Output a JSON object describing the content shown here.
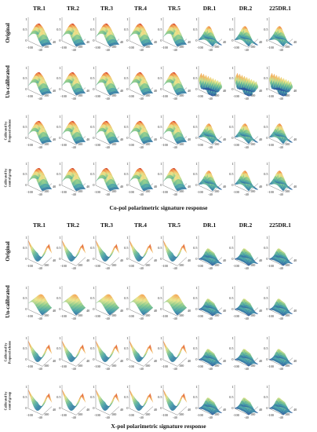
{
  "columns": [
    "TR.1",
    "TR.2",
    "TR.3",
    "TR.4",
    "TR.5",
    "DR.1",
    "DR.2",
    "225DR.1"
  ],
  "rows": [
    {
      "label": "Original",
      "style": "big"
    },
    {
      "label": "Un-calibrated",
      "style": "big"
    },
    {
      "label": "Calibrated by\nProposed scheme",
      "style": "small"
    },
    {
      "label": "Calibrated by\ncontrol group",
      "style": "small"
    }
  ],
  "ticks": {
    "z": [
      "0",
      "0.5",
      "1"
    ],
    "x": [
      "-100",
      "-40"
    ],
    "y": [
      "40",
      "100"
    ]
  },
  "panels": [
    {
      "caption": "Co-pol polarimetric signature response"
    },
    {
      "caption": "X-pol polarimetric signature response"
    }
  ]
}
